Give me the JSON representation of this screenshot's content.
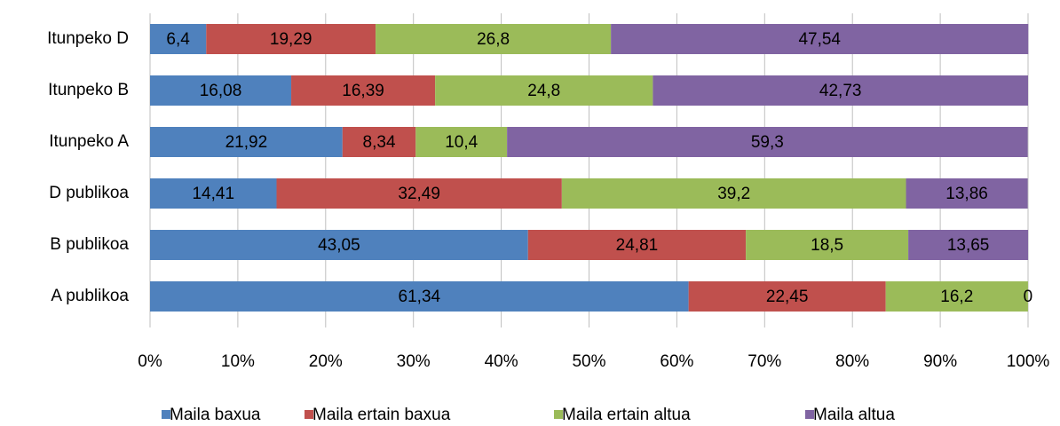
{
  "chart_data": {
    "type": "bar",
    "orientation": "horizontal",
    "stacked": true,
    "categories": [
      "Itunpeko D",
      "Itunpeko B",
      "Itunpeko A",
      "D publikoa",
      "B publikoa",
      "A publikoa"
    ],
    "series": [
      {
        "name": "Maila baxua",
        "color": "#4f81bd",
        "values": [
          6.4,
          16.08,
          21.92,
          14.41,
          43.05,
          61.34
        ],
        "value_labels": [
          "6,4",
          "16,08",
          "21,92",
          "14,41",
          "43,05",
          "61,34"
        ]
      },
      {
        "name": "Maila ertain baxua",
        "color": "#c0504d",
        "values": [
          19.29,
          16.39,
          8.34,
          32.49,
          24.81,
          22.45
        ],
        "value_labels": [
          "19,29",
          "16,39",
          "8,34",
          "32,49",
          "24,81",
          "22,45"
        ]
      },
      {
        "name": "Maila ertain altua",
        "color": "#9bbb59",
        "values": [
          26.8,
          24.8,
          10.4,
          39.2,
          18.5,
          16.2
        ],
        "value_labels": [
          "26,8",
          "24,8",
          "10,4",
          "39,2",
          "18,5",
          "16,2"
        ]
      },
      {
        "name": "Maila altua",
        "color": "#8064a2",
        "values": [
          47.54,
          42.73,
          59.3,
          13.86,
          13.65,
          0
        ],
        "value_labels": [
          "47,54",
          "42,73",
          "59,3",
          "13,86",
          "13,65",
          "0"
        ]
      }
    ],
    "xlim": [
      0,
      100
    ],
    "xticks": [
      {
        "value": 0,
        "label": "0%"
      },
      {
        "value": 10,
        "label": "10%"
      },
      {
        "value": 20,
        "label": "20%"
      },
      {
        "value": 30,
        "label": "30%"
      },
      {
        "value": 40,
        "label": "40%"
      },
      {
        "value": 50,
        "label": "50%"
      },
      {
        "value": 60,
        "label": "60%"
      },
      {
        "value": 70,
        "label": "70%"
      },
      {
        "value": 80,
        "label": "80%"
      },
      {
        "value": 90,
        "label": "90%"
      },
      {
        "value": 100,
        "label": "100%"
      }
    ],
    "grid": true,
    "legend": "bottom"
  }
}
